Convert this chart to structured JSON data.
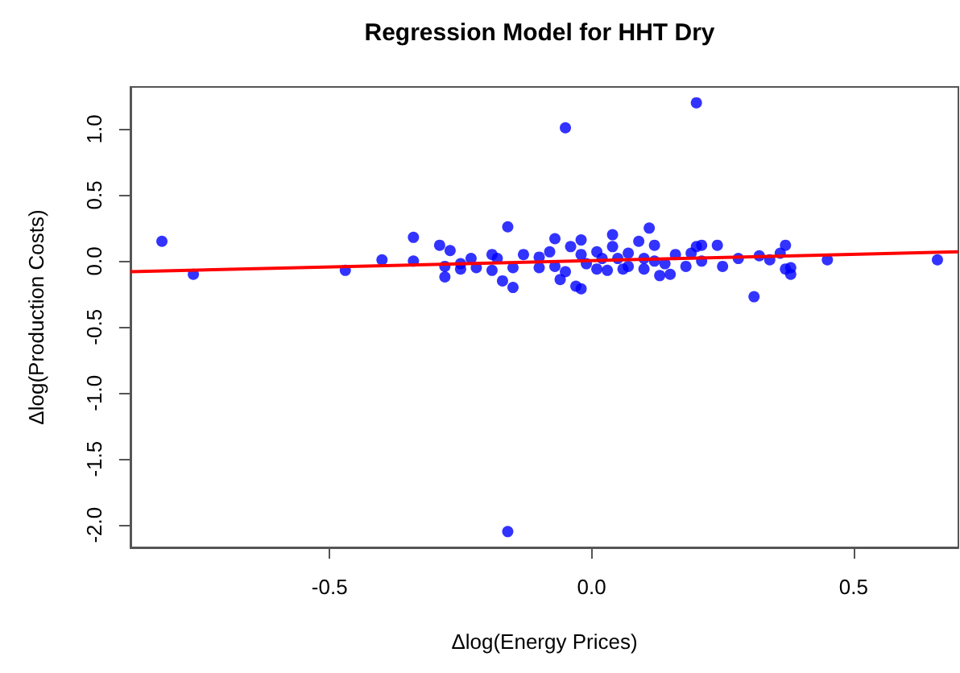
{
  "chart_data": {
    "type": "scatter",
    "title": "Regression Model for HHT Dry",
    "xlabel": "Δlog(Energy Prices)",
    "ylabel": "Δlog(Production Costs)",
    "xlim": [
      -0.88,
      0.7
    ],
    "ylim": [
      -2.17,
      1.32
    ],
    "xticks": [
      {
        "value": -0.5,
        "label": "-0.5"
      },
      {
        "value": 0,
        "label": "0.0"
      },
      {
        "value": 0.5,
        "label": "0.5"
      }
    ],
    "yticks": [
      {
        "value": -2,
        "label": "-2.0"
      },
      {
        "value": -1.5,
        "label": "-1.5"
      },
      {
        "value": -1,
        "label": "-1.0"
      },
      {
        "value": -0.5,
        "label": "-0.5"
      },
      {
        "value": 0,
        "label": "0.0"
      },
      {
        "value": 0.5,
        "label": "0.5"
      },
      {
        "value": 1,
        "label": "1.0"
      }
    ],
    "grid": false,
    "series": [
      {
        "color": "#0000ff",
        "marker": "circle",
        "x": [
          -0.82,
          -0.76,
          -0.47,
          -0.4,
          -0.34,
          -0.34,
          -0.29,
          -0.27,
          -0.28,
          -0.28,
          -0.25,
          -0.25,
          -0.23,
          -0.22,
          -0.19,
          -0.18,
          -0.19,
          -0.16,
          -0.17,
          -0.15,
          -0.15,
          -0.13,
          -0.05,
          0.2,
          -0.1,
          -0.1,
          -0.07,
          -0.08,
          -0.07,
          -0.06,
          -0.05,
          -0.03,
          -0.02,
          -0.04,
          -0.02,
          -0.02,
          -0.01,
          0.01,
          0.01,
          0.02,
          0.03,
          0.04,
          0.04,
          0.05,
          0.06,
          0.07,
          0.07,
          0.09,
          0.1,
          0.1,
          0.11,
          0.12,
          0.12,
          0.13,
          0.14,
          0.15,
          0.16,
          0.18,
          0.19,
          0.2,
          0.21,
          0.21,
          0.24,
          0.25,
          0.28,
          0.31,
          0.32,
          0.34,
          0.36,
          0.37,
          0.37,
          0.38,
          0.38,
          0.45,
          0.66,
          -0.16
        ],
        "values": [
          0.15,
          -0.1,
          -0.07,
          0.01,
          0.18,
          0.0,
          0.12,
          0.08,
          -0.04,
          -0.12,
          -0.02,
          -0.06,
          0.02,
          -0.05,
          0.05,
          0.02,
          -0.07,
          0.26,
          -0.15,
          -0.2,
          -0.05,
          0.05,
          1.01,
          1.2,
          0.03,
          -0.05,
          0.17,
          0.07,
          -0.04,
          -0.14,
          -0.08,
          -0.19,
          -0.21,
          0.11,
          0.16,
          0.05,
          -0.02,
          0.07,
          -0.06,
          0.02,
          -0.07,
          0.2,
          0.11,
          0.02,
          -0.06,
          0.06,
          -0.04,
          0.15,
          0.02,
          -0.06,
          0.25,
          0.12,
          0.0,
          -0.11,
          -0.02,
          -0.1,
          0.05,
          -0.04,
          0.06,
          0.11,
          0.12,
          0.0,
          0.12,
          -0.04,
          0.02,
          -0.27,
          0.04,
          0.01,
          0.06,
          0.12,
          -0.06,
          -0.1,
          -0.05,
          0.01,
          0.01,
          -2.05
        ]
      },
      {
        "type": "line",
        "color": "#ff0000",
        "x": [
          -0.88,
          0.7
        ],
        "values": [
          -0.08,
          0.07
        ]
      }
    ]
  }
}
